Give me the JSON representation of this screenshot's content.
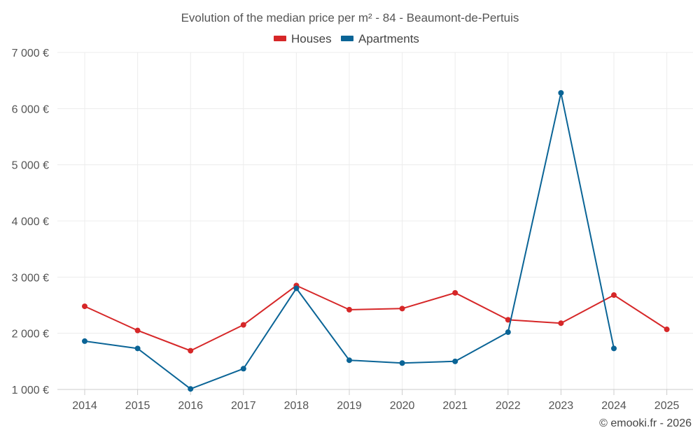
{
  "chart_data": {
    "type": "line",
    "title": "Evolution of the median price per m² - 84 - Beaumont-de-Pertuis",
    "xlabel": "",
    "ylabel": "",
    "categories": [
      "2014",
      "2015",
      "2016",
      "2017",
      "2018",
      "2019",
      "2020",
      "2021",
      "2022",
      "2023",
      "2024",
      "2025"
    ],
    "ylim": [
      1000,
      7000
    ],
    "yticks": [
      1000,
      2000,
      3000,
      4000,
      5000,
      6000,
      7000
    ],
    "ytick_labels": [
      "1 000 €",
      "2 000 €",
      "3 000 €",
      "4 000 €",
      "5 000 €",
      "6 000 €",
      "7 000 €"
    ],
    "grid": true,
    "legend_position": "top-center",
    "series": [
      {
        "name": "Houses",
        "color": "#d62728",
        "values": [
          2480,
          2050,
          1690,
          2150,
          2850,
          2420,
          2440,
          2720,
          2240,
          2180,
          2680,
          2070
        ]
      },
      {
        "name": "Apartments",
        "color": "#0a6496",
        "values": [
          1860,
          1730,
          1010,
          1370,
          2800,
          1520,
          1470,
          1500,
          2020,
          6280,
          1730,
          null
        ]
      }
    ],
    "credit": "© emooki.fr - 2026"
  }
}
